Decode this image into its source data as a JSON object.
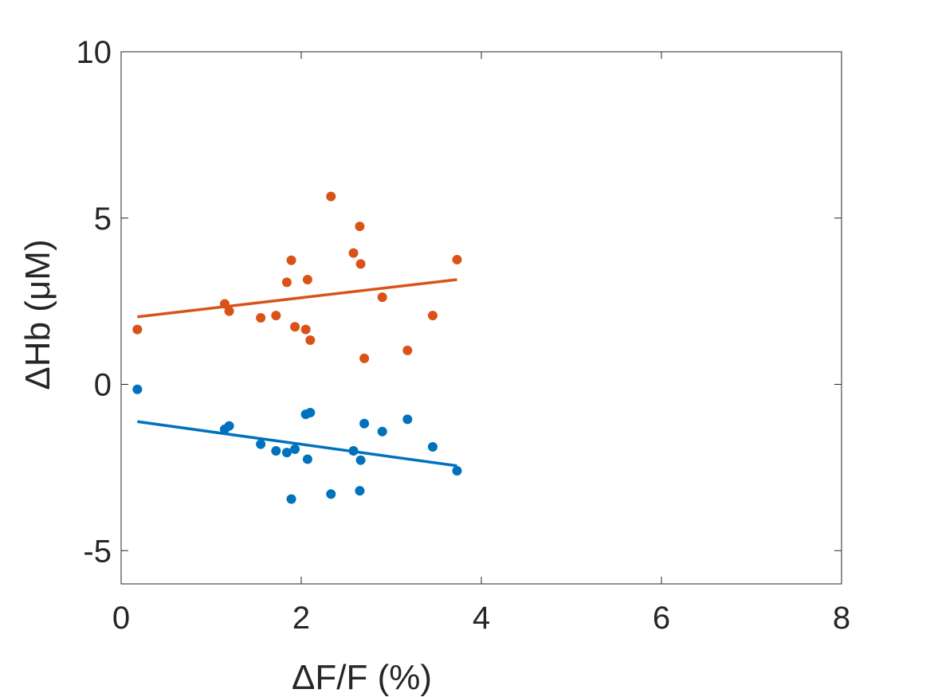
{
  "chart_data": {
    "type": "scatter",
    "xlabel": "ΔF/F (%)",
    "ylabel": "ΔHb (μM)",
    "xlim": [
      0,
      8
    ],
    "ylim": [
      -6,
      10
    ],
    "xticks": [
      0,
      2,
      4,
      6,
      8
    ],
    "yticks": [
      -5,
      0,
      5,
      10
    ],
    "grid": false,
    "series": [
      {
        "color": "#D95319",
        "points": [
          {
            "x": 0.18,
            "y": 1.65
          },
          {
            "x": 1.15,
            "y": 2.42
          },
          {
            "x": 1.2,
            "y": 2.2
          },
          {
            "x": 1.55,
            "y": 2.0
          },
          {
            "x": 1.72,
            "y": 2.07
          },
          {
            "x": 1.84,
            "y": 3.07
          },
          {
            "x": 1.89,
            "y": 3.73
          },
          {
            "x": 1.93,
            "y": 1.73
          },
          {
            "x": 2.05,
            "y": 1.65
          },
          {
            "x": 2.07,
            "y": 3.15
          },
          {
            "x": 2.1,
            "y": 1.33
          },
          {
            "x": 2.33,
            "y": 5.65
          },
          {
            "x": 2.58,
            "y": 3.95
          },
          {
            "x": 2.65,
            "y": 4.75
          },
          {
            "x": 2.66,
            "y": 3.62
          },
          {
            "x": 2.7,
            "y": 0.78
          },
          {
            "x": 2.9,
            "y": 2.62
          },
          {
            "x": 3.18,
            "y": 1.02
          },
          {
            "x": 3.46,
            "y": 2.07
          },
          {
            "x": 3.73,
            "y": 3.75
          }
        ],
        "fit": {
          "x": [
            0.18,
            3.73
          ],
          "y": [
            2.03,
            3.15
          ]
        }
      },
      {
        "color": "#0072BD",
        "points": [
          {
            "x": 0.18,
            "y": -0.15
          },
          {
            "x": 1.15,
            "y": -1.35
          },
          {
            "x": 1.2,
            "y": -1.25
          },
          {
            "x": 1.55,
            "y": -1.8
          },
          {
            "x": 1.72,
            "y": -2.0
          },
          {
            "x": 1.84,
            "y": -2.05
          },
          {
            "x": 1.89,
            "y": -3.45
          },
          {
            "x": 1.93,
            "y": -1.95
          },
          {
            "x": 2.05,
            "y": -0.9
          },
          {
            "x": 2.07,
            "y": -2.25
          },
          {
            "x": 2.1,
            "y": -0.85
          },
          {
            "x": 2.33,
            "y": -3.3
          },
          {
            "x": 2.58,
            "y": -2.0
          },
          {
            "x": 2.65,
            "y": -3.2
          },
          {
            "x": 2.66,
            "y": -2.28
          },
          {
            "x": 2.7,
            "y": -1.18
          },
          {
            "x": 2.9,
            "y": -1.42
          },
          {
            "x": 3.18,
            "y": -1.05
          },
          {
            "x": 3.46,
            "y": -1.88
          },
          {
            "x": 3.73,
            "y": -2.6
          }
        ],
        "fit": {
          "x": [
            0.18,
            3.73
          ],
          "y": [
            -1.12,
            -2.45
          ]
        }
      }
    ]
  }
}
